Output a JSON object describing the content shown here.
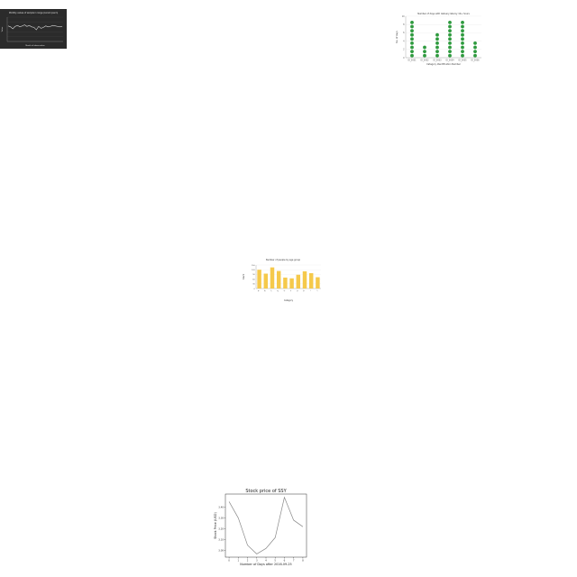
{
  "chart_data": [
    {
      "type": "line",
      "title": "Monthly values of sample in range (Lorem ipsum)",
      "xlabel": "Month of observation",
      "ylabel": "Value",
      "x": [
        1,
        2,
        3,
        4,
        5,
        6,
        7,
        8,
        9,
        10,
        11,
        12,
        13,
        14,
        15,
        16,
        17,
        18,
        19,
        20,
        21,
        22,
        23,
        24
      ],
      "y": [
        3.2,
        3.0,
        2.6,
        3.1,
        3.3,
        3.0,
        3.2,
        3.4,
        3.1,
        3.3,
        3.0,
        2.9,
        2.4,
        3.1,
        2.7,
        2.9,
        3.2,
        3.0,
        3.1,
        3.3,
        3.2,
        3.1,
        3.0,
        3.1
      ],
      "ylim": [
        0,
        5
      ],
      "grid": true,
      "colors": {
        "background": "#2b2b2b",
        "line": "#d9d9d9",
        "text": "#e0e0e0"
      }
    },
    {
      "type": "scatter",
      "title": "Number of days with delivery late by 10+ hours",
      "xlabel": "Category Identification Number",
      "ylabel": "No. of days",
      "categories": [
        "ID_0001",
        "ID_0002",
        "ID_0003",
        "ID_0004",
        "ID_0005",
        "ID_0006"
      ],
      "values": [
        9,
        3,
        6,
        9,
        9,
        4
      ],
      "ylim": [
        0,
        10
      ],
      "grid": true,
      "colors": {
        "marker": "#2e9a3e"
      }
    },
    {
      "type": "bar",
      "title": "Number of people by age group",
      "xlabel": "Category",
      "ylabel": "Count",
      "categories": [
        "A",
        "B",
        "C",
        "D",
        "E",
        "F",
        "G",
        "H",
        "I",
        "J"
      ],
      "values": [
        120,
        95,
        135,
        112,
        70,
        65,
        88,
        110,
        98,
        72
      ],
      "ylim": [
        0,
        150
      ],
      "grid": true,
      "colors": {
        "bar": "#f5c94b"
      }
    },
    {
      "type": "line",
      "title": "Stock price of SSY",
      "xlabel": "Number of Days after 2016-09-25",
      "ylabel": "Stock Price (USD)",
      "x": [
        0,
        1,
        2,
        3,
        4,
        5,
        6,
        7,
        8
      ],
      "xticks": [
        0,
        1,
        2,
        3,
        4,
        5,
        6,
        7,
        8
      ],
      "y": [
        3.45,
        3.3,
        3.05,
        2.97,
        3.02,
        3.12,
        3.49,
        3.28,
        3.22
      ],
      "ylim": [
        2.94,
        3.52
      ],
      "yticks": [
        3.0,
        3.1,
        3.2,
        3.3,
        3.4
      ],
      "grid": false,
      "colors": {
        "line": "#888888",
        "axes": "#333333"
      }
    }
  ]
}
